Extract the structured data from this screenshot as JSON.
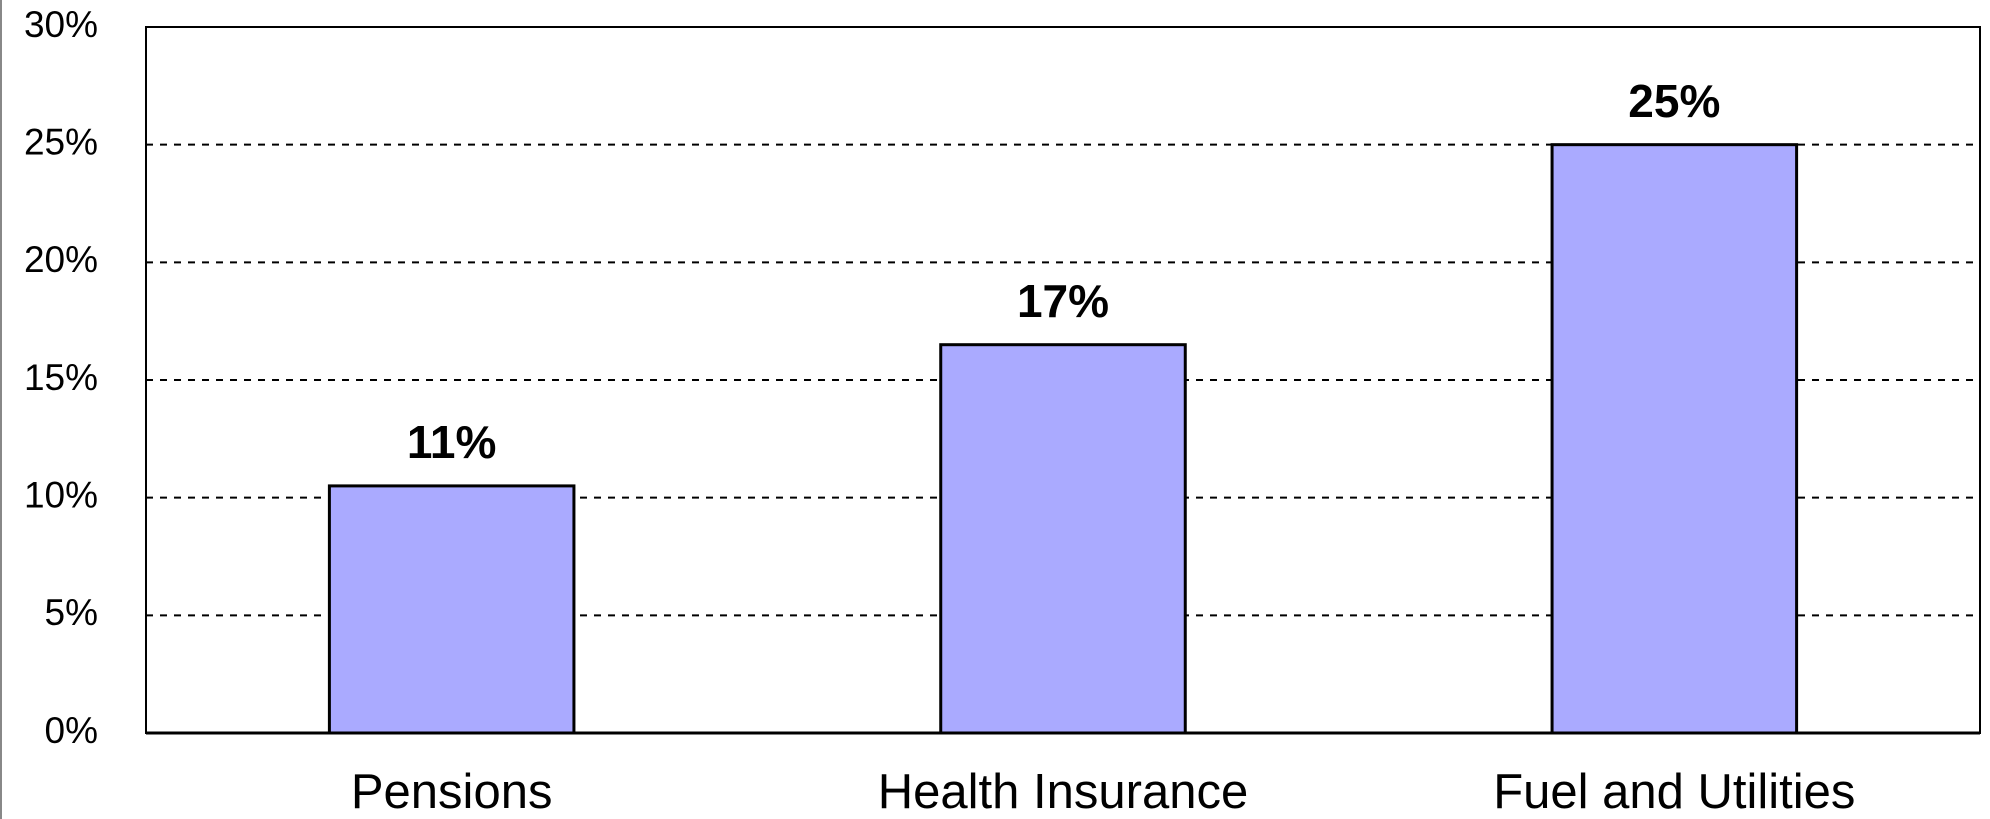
{
  "chart_data": {
    "type": "bar",
    "categories": [
      "Pensions",
      "Health Insurance",
      "Fuel and Utilities"
    ],
    "values": [
      10.5,
      16.5,
      25
    ],
    "value_labels": [
      "11%",
      "17%",
      "25%"
    ],
    "color": "#aaaaff",
    "ylim": [
      0,
      30
    ],
    "yticks": [
      {
        "value": 0,
        "label": "0%"
      },
      {
        "value": 5,
        "label": "5%"
      },
      {
        "value": 10,
        "label": "10%"
      },
      {
        "value": 15,
        "label": "15%"
      },
      {
        "value": 20,
        "label": "20%"
      },
      {
        "value": 25,
        "label": "25%"
      },
      {
        "value": 30,
        "label": "30%"
      }
    ],
    "grid": true
  }
}
